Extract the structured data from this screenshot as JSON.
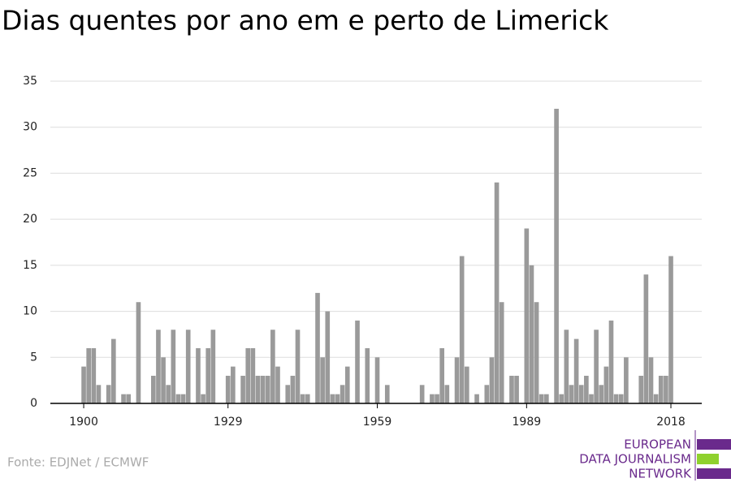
{
  "chart_data": {
    "type": "bar",
    "title": "Dias quentes por ano em e perto de Limerick",
    "source": "Fonte: EDJNet / ECMWF",
    "logo": [
      "EUROPEAN",
      "DATA JOURNALISM",
      "NETWORK"
    ],
    "x": [
      1900,
      1901,
      1902,
      1903,
      1904,
      1905,
      1906,
      1907,
      1908,
      1909,
      1910,
      1911,
      1912,
      1913,
      1914,
      1915,
      1916,
      1917,
      1918,
      1919,
      1920,
      1921,
      1922,
      1923,
      1924,
      1925,
      1926,
      1927,
      1928,
      1929,
      1930,
      1931,
      1932,
      1933,
      1934,
      1935,
      1936,
      1937,
      1938,
      1939,
      1940,
      1941,
      1942,
      1943,
      1944,
      1945,
      1946,
      1947,
      1948,
      1949,
      1950,
      1951,
      1952,
      1953,
      1954,
      1955,
      1956,
      1957,
      1958,
      1959,
      1960,
      1961,
      1962,
      1963,
      1964,
      1965,
      1966,
      1967,
      1968,
      1969,
      1970,
      1971,
      1972,
      1973,
      1974,
      1975,
      1976,
      1977,
      1978,
      1979,
      1980,
      1981,
      1982,
      1983,
      1984,
      1985,
      1986,
      1987,
      1988,
      1989,
      1990,
      1991,
      1992,
      1993,
      1994,
      1995,
      1996,
      1997,
      1998,
      1999,
      2000,
      2001,
      2002,
      2003,
      2004,
      2005,
      2006,
      2007,
      2008,
      2009,
      2010,
      2011,
      2012,
      2013,
      2014,
      2015,
      2016,
      2017,
      2018
    ],
    "values": [
      4,
      6,
      6,
      2,
      0,
      2,
      7,
      0,
      1,
      1,
      0,
      11,
      0,
      0,
      3,
      8,
      5,
      2,
      8,
      1,
      1,
      8,
      0,
      6,
      1,
      6,
      8,
      0,
      0,
      3,
      4,
      0,
      3,
      6,
      6,
      3,
      3,
      3,
      8,
      4,
      0,
      2,
      3,
      8,
      1,
      1,
      0,
      12,
      5,
      10,
      1,
      1,
      2,
      4,
      0,
      9,
      0,
      6,
      0,
      5,
      0,
      2,
      0,
      0,
      0,
      0,
      0,
      0,
      2,
      0,
      1,
      1,
      6,
      2,
      0,
      5,
      16,
      4,
      0,
      1,
      0,
      2,
      5,
      24,
      11,
      0,
      3,
      3,
      0,
      19,
      15,
      11,
      1,
      1,
      0,
      32,
      1,
      8,
      2,
      7,
      2,
      3,
      1,
      8,
      2,
      4,
      9,
      1,
      1,
      5,
      0,
      0,
      3,
      14,
      5,
      1,
      3,
      3,
      16
    ],
    "color": "#9a9a9a",
    "xlim": [
      1893.3,
      2024.2
    ],
    "xticks": [
      1900,
      1929,
      1959,
      1989,
      2018
    ],
    "ylim": [
      0,
      35
    ],
    "yticks": [
      0,
      5,
      10,
      15,
      20,
      25,
      30,
      35
    ],
    "grid": true
  }
}
